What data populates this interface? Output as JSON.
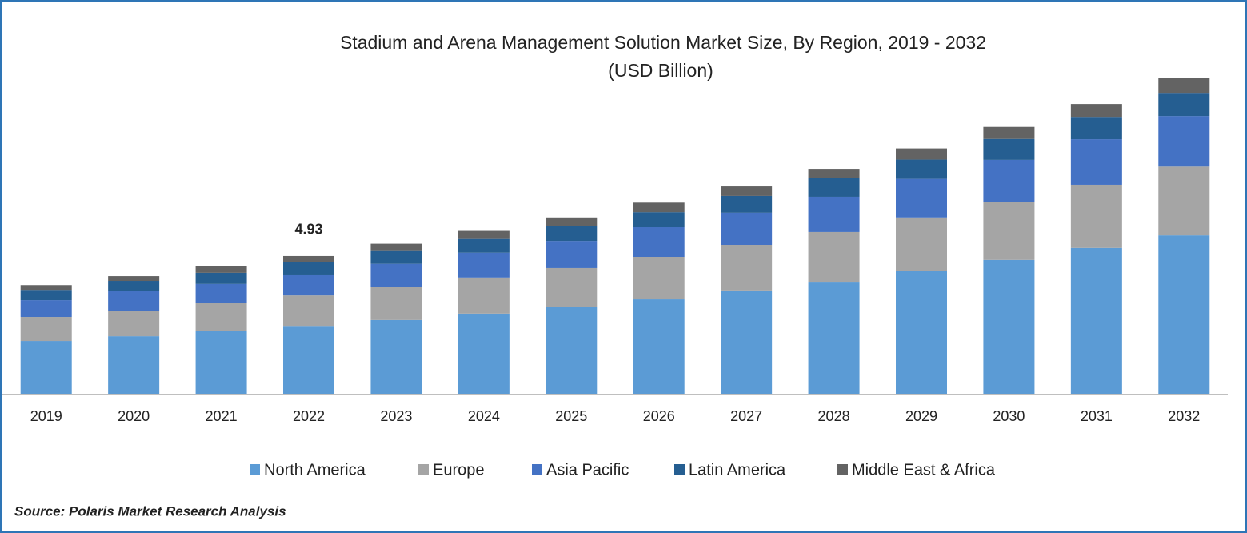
{
  "chart_data": {
    "type": "stacked_bar",
    "title": "Stadium and Arena Management Solution Market Size, By Region, 2019 - 2032",
    "subtitle": "(USD Billion)",
    "source": "Source: Polaris Market Research Analysis",
    "categories": [
      "2019",
      "2020",
      "2021",
      "2022",
      "2023",
      "2024",
      "2025",
      "2026",
      "2027",
      "2028",
      "2029",
      "2030",
      "2031",
      "2032"
    ],
    "series": [
      {
        "name": "North America",
        "color": "#5b9bd5",
        "values": [
          1.89,
          2.06,
          2.24,
          2.43,
          2.64,
          2.87,
          3.12,
          3.38,
          3.7,
          4.01,
          4.39,
          4.79,
          5.22,
          5.67
        ]
      },
      {
        "name": "Europe",
        "color": "#a5a5a5",
        "values": [
          0.86,
          0.92,
          1.0,
          1.09,
          1.18,
          1.29,
          1.38,
          1.52,
          1.63,
          1.78,
          1.92,
          2.06,
          2.26,
          2.46
        ]
      },
      {
        "name": "Asia Pacific",
        "color": "#4472c4",
        "values": [
          0.6,
          0.69,
          0.69,
          0.75,
          0.83,
          0.89,
          0.97,
          1.06,
          1.15,
          1.26,
          1.38,
          1.52,
          1.63,
          1.81
        ]
      },
      {
        "name": "Latin America",
        "color": "#255e91",
        "values": [
          0.37,
          0.37,
          0.4,
          0.43,
          0.46,
          0.49,
          0.52,
          0.54,
          0.6,
          0.66,
          0.69,
          0.75,
          0.8,
          0.83
        ]
      },
      {
        "name": "Middle East & Africa",
        "color": "#636363",
        "values": [
          0.17,
          0.17,
          0.23,
          0.23,
          0.26,
          0.29,
          0.32,
          0.34,
          0.34,
          0.34,
          0.4,
          0.43,
          0.46,
          0.52
        ]
      }
    ],
    "annotation": {
      "category": "2022",
      "value": 4.93
    },
    "legend": "bottom"
  }
}
